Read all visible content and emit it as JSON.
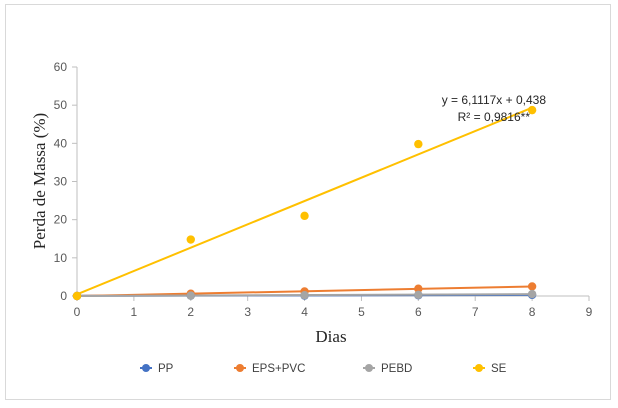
{
  "chart_data": {
    "type": "scatter",
    "xlabel": "Dias",
    "ylabel": "Perda de Massa (%)",
    "xlim": [
      0,
      9
    ],
    "ylim": [
      0,
      60
    ],
    "xticks": [
      "0",
      "1",
      "2",
      "3",
      "4",
      "5",
      "6",
      "7",
      "8",
      "9"
    ],
    "yticks": [
      "0",
      "10",
      "20",
      "30",
      "40",
      "50",
      "60"
    ],
    "grid": false,
    "legend_position": "bottom",
    "series": [
      {
        "name": "PP",
        "color": "#4472c4",
        "x": [
          0,
          2,
          4,
          6,
          8
        ],
        "y": [
          0,
          0.1,
          0.1,
          0.2,
          0.3
        ],
        "trend": [
          0.05,
          0.03
        ]
      },
      {
        "name": "EPS+PVC",
        "color": "#ed7d31",
        "x": [
          0,
          2,
          4,
          6,
          8
        ],
        "y": [
          0,
          0.6,
          1.2,
          1.9,
          2.5
        ],
        "trend": [
          0.0,
          0.31
        ]
      },
      {
        "name": "PEBD",
        "color": "#a5a5a5",
        "x": [
          0,
          2,
          4,
          6,
          8
        ],
        "y": [
          0,
          0.1,
          0.2,
          0.3,
          0.5
        ],
        "trend": [
          0.0,
          0.06
        ]
      },
      {
        "name": "SE",
        "color": "#ffc000",
        "x": [
          0,
          2,
          4,
          6,
          8
        ],
        "y": [
          0,
          14.8,
          21.0,
          39.8,
          48.7
        ],
        "trend": [
          0.438,
          6.1117
        ]
      }
    ],
    "annotations": {
      "equation": "y = 6,1117x + 0,438",
      "r2": "R² = 0,9816**"
    }
  }
}
